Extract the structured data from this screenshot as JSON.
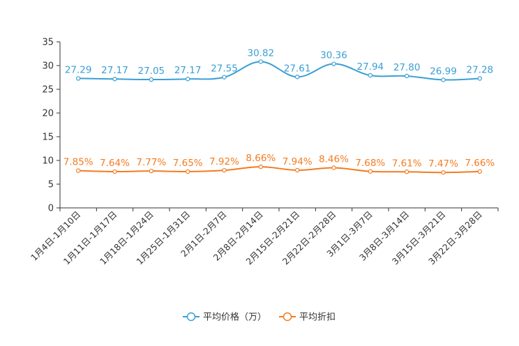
{
  "chart_data": {
    "type": "line",
    "title": "",
    "xlabel": "",
    "ylabel": "",
    "ylim": [
      0,
      35
    ],
    "yticks": [
      0,
      5,
      10,
      15,
      20,
      25,
      30,
      35
    ],
    "grid": false,
    "legend_position": "bottom-center",
    "categories": [
      "1月4日-1月10日",
      "1月11日-1月17日",
      "1月18日-1月24日",
      "1月25日-1月31日",
      "2月1日-2月7日",
      "2月8日-2月14日",
      "2月15日-2月21日",
      "2月22日-2月28日",
      "3月1日-3月7日",
      "3月8日-3月14日",
      "3月15日-3月21日",
      "3月22日-3月28日"
    ],
    "series": [
      {
        "name": "平均价格（万）",
        "color": "#3a9fd4",
        "values": [
          27.29,
          27.17,
          27.05,
          27.17,
          27.55,
          30.82,
          27.61,
          30.36,
          27.94,
          27.8,
          26.99,
          27.28
        ],
        "labels": [
          "27.29",
          "27.17",
          "27.05",
          "27.17",
          "27.55",
          "30.82",
          "27.61",
          "30.36",
          "27.94",
          "27.80",
          "26.99",
          "27.28"
        ]
      },
      {
        "name": "平均折扣",
        "color": "#f47b20",
        "values": [
          7.85,
          7.64,
          7.77,
          7.65,
          7.92,
          8.66,
          7.94,
          8.46,
          7.68,
          7.61,
          7.47,
          7.66
        ],
        "labels": [
          "7.85%",
          "7.64%",
          "7.77%",
          "7.65%",
          "7.92%",
          "8.66%",
          "7.94%",
          "8.46%",
          "7.68%",
          "7.61%",
          "7.47%",
          "7.66%"
        ]
      }
    ]
  }
}
